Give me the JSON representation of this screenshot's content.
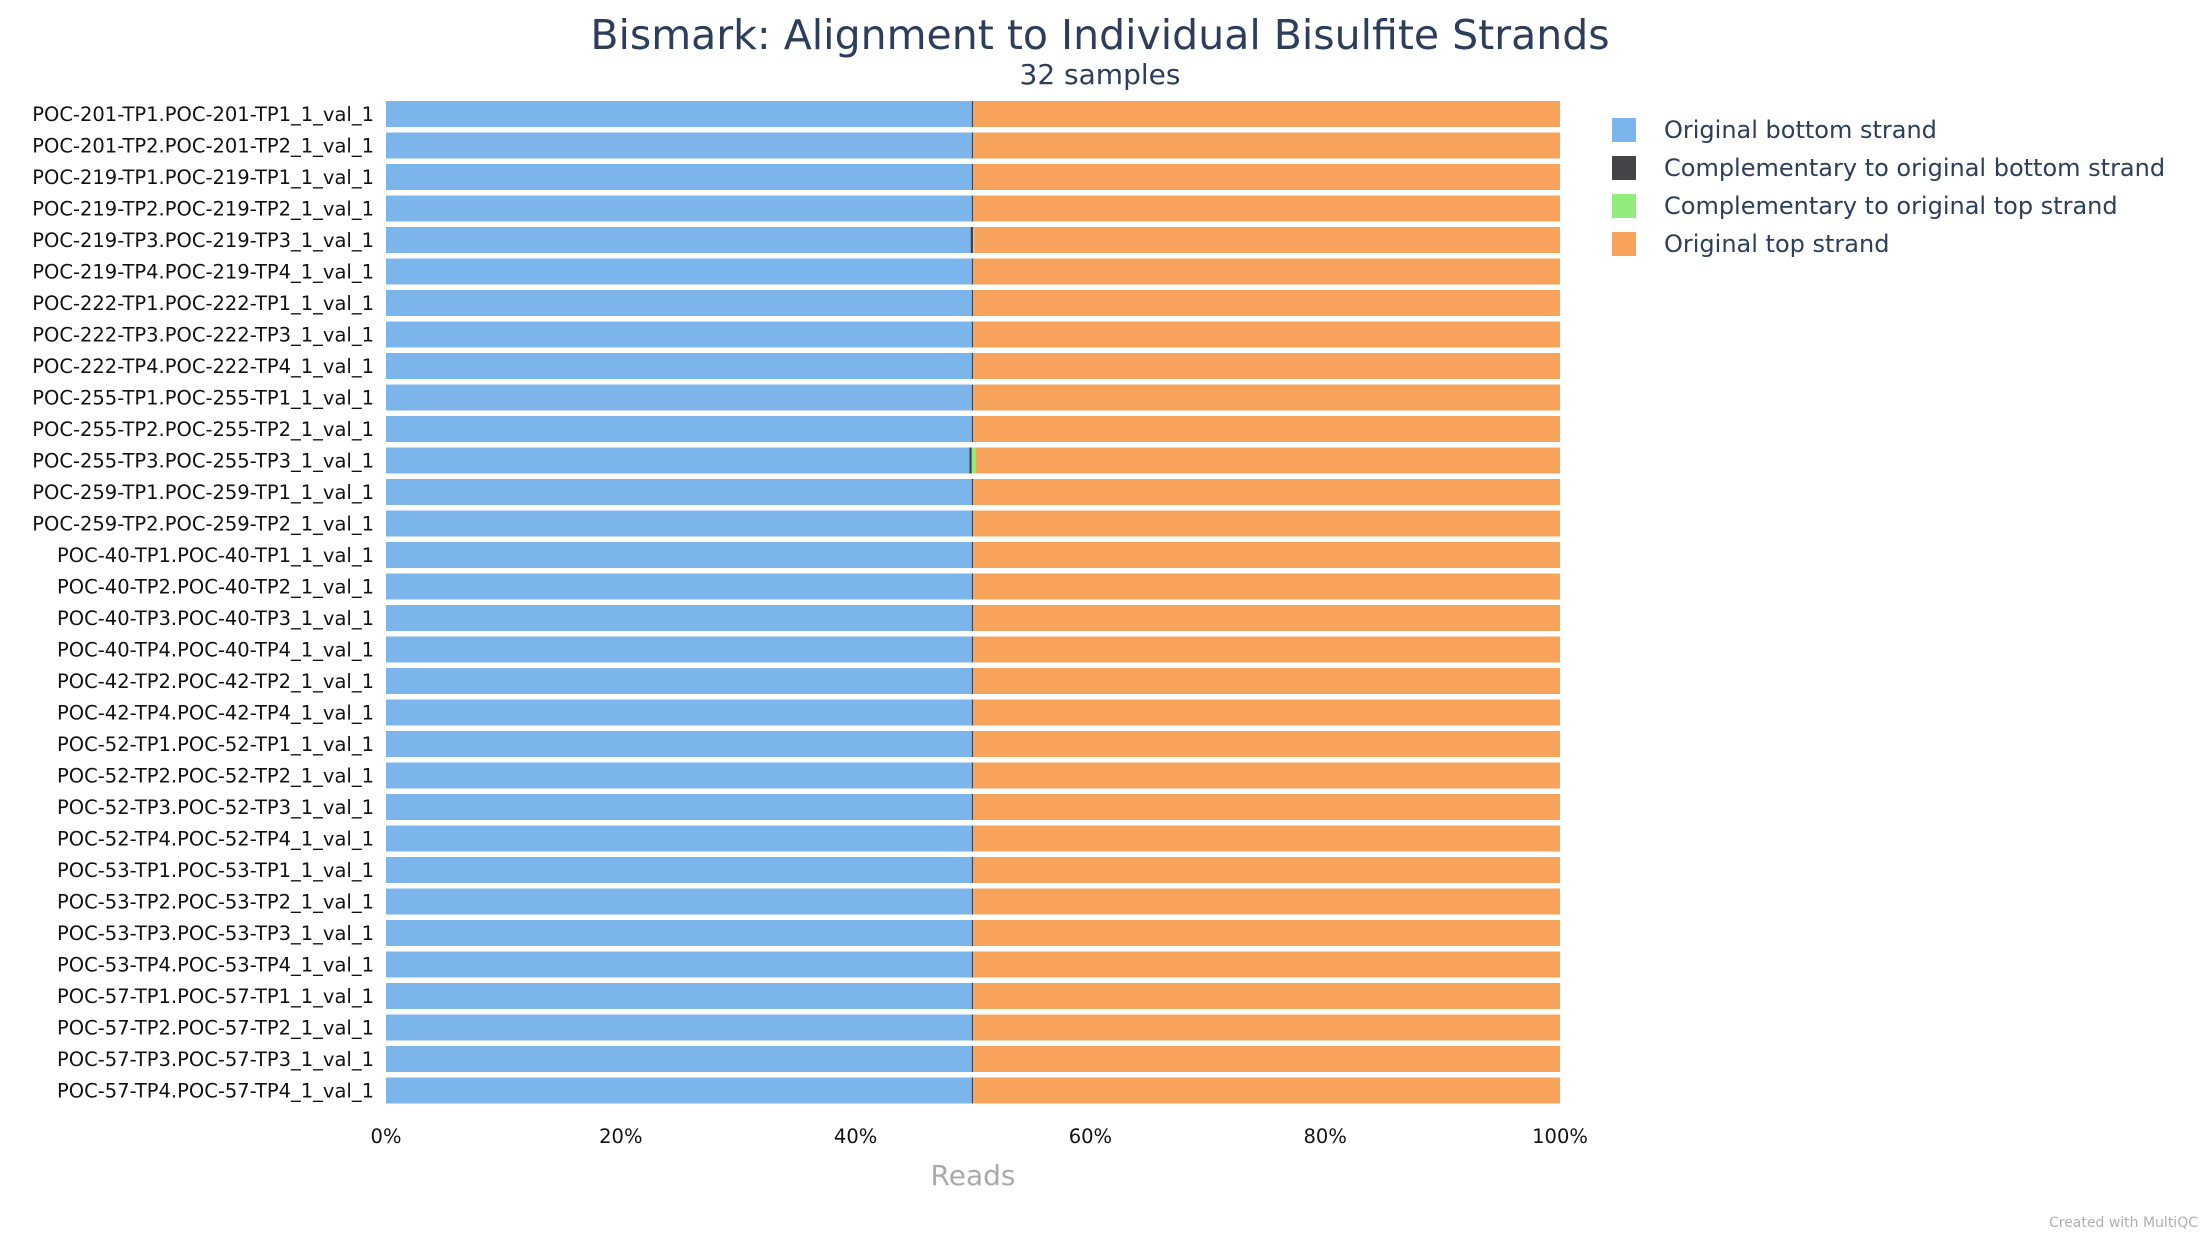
{
  "chart_data": {
    "type": "bar",
    "orientation": "horizontal",
    "stacked": true,
    "normalized": true,
    "title": "Bismark: Alignment to Individual Bisulfite Strands",
    "subtitle": "32 samples",
    "xlabel": "Reads",
    "xlim": [
      0,
      100
    ],
    "x_ticks": [
      "0%",
      "20%",
      "40%",
      "60%",
      "80%",
      "100%"
    ],
    "grid": false,
    "legend_position": "right",
    "categories": [
      "POC-201-TP1.POC-201-TP1_1_val_1",
      "POC-201-TP2.POC-201-TP2_1_val_1",
      "POC-219-TP1.POC-219-TP1_1_val_1",
      "POC-219-TP2.POC-219-TP2_1_val_1",
      "POC-219-TP3.POC-219-TP3_1_val_1",
      "POC-219-TP4.POC-219-TP4_1_val_1",
      "POC-222-TP1.POC-222-TP1_1_val_1",
      "POC-222-TP3.POC-222-TP3_1_val_1",
      "POC-222-TP4.POC-222-TP4_1_val_1",
      "POC-255-TP1.POC-255-TP1_1_val_1",
      "POC-255-TP2.POC-255-TP2_1_val_1",
      "POC-255-TP3.POC-255-TP3_1_val_1",
      "POC-259-TP1.POC-259-TP1_1_val_1",
      "POC-259-TP2.POC-259-TP2_1_val_1",
      "POC-40-TP1.POC-40-TP1_1_val_1",
      "POC-40-TP2.POC-40-TP2_1_val_1",
      "POC-40-TP3.POC-40-TP3_1_val_1",
      "POC-40-TP4.POC-40-TP4_1_val_1",
      "POC-42-TP2.POC-42-TP2_1_val_1",
      "POC-42-TP4.POC-42-TP4_1_val_1",
      "POC-52-TP1.POC-52-TP1_1_val_1",
      "POC-52-TP2.POC-52-TP2_1_val_1",
      "POC-52-TP3.POC-52-TP3_1_val_1",
      "POC-52-TP4.POC-52-TP4_1_val_1",
      "POC-53-TP1.POC-53-TP1_1_val_1",
      "POC-53-TP2.POC-53-TP2_1_val_1",
      "POC-53-TP3.POC-53-TP3_1_val_1",
      "POC-53-TP4.POC-53-TP4_1_val_1",
      "POC-57-TP1.POC-57-TP1_1_val_1",
      "POC-57-TP2.POC-57-TP2_1_val_1",
      "POC-57-TP3.POC-57-TP3_1_val_1",
      "POC-57-TP4.POC-57-TP4_1_val_1"
    ],
    "series": [
      {
        "name": "Original bottom strand",
        "color": "#7cb5ec",
        "values": [
          49.9,
          49.9,
          49.9,
          49.9,
          49.8,
          49.9,
          49.9,
          49.9,
          49.9,
          49.9,
          49.9,
          49.7,
          49.9,
          49.9,
          49.9,
          49.9,
          49.9,
          49.9,
          49.9,
          49.9,
          49.9,
          49.9,
          49.9,
          49.9,
          49.9,
          49.9,
          49.9,
          49.9,
          49.9,
          49.9,
          49.9,
          49.9
        ]
      },
      {
        "name": "Complementary to original bottom strand",
        "color": "#434348",
        "values": [
          0.1,
          0.1,
          0.1,
          0.1,
          0.2,
          0.1,
          0.1,
          0.1,
          0.1,
          0.1,
          0.1,
          0.2,
          0.1,
          0.1,
          0.1,
          0.1,
          0.1,
          0.1,
          0.1,
          0.1,
          0.1,
          0.1,
          0.1,
          0.1,
          0.1,
          0.1,
          0.1,
          0.1,
          0.1,
          0.1,
          0.1,
          0.1
        ]
      },
      {
        "name": "Complementary to original top strand",
        "color": "#90ed7d",
        "values": [
          0.0,
          0.0,
          0.0,
          0.0,
          0.1,
          0.0,
          0.0,
          0.0,
          0.0,
          0.0,
          0.0,
          0.3,
          0.0,
          0.0,
          0.0,
          0.0,
          0.0,
          0.0,
          0.0,
          0.0,
          0.0,
          0.0,
          0.0,
          0.0,
          0.0,
          0.0,
          0.0,
          0.0,
          0.0,
          0.0,
          0.0,
          0.0
        ]
      },
      {
        "name": "Original top strand",
        "color": "#f7a35c",
        "values": [
          50.0,
          50.0,
          50.0,
          50.0,
          49.9,
          50.0,
          50.0,
          50.0,
          50.0,
          50.0,
          50.0,
          49.8,
          50.0,
          50.0,
          50.0,
          50.0,
          50.0,
          50.0,
          50.0,
          50.0,
          50.0,
          50.0,
          50.0,
          50.0,
          50.0,
          50.0,
          50.0,
          50.0,
          50.0,
          50.0,
          50.0,
          50.0
        ]
      }
    ]
  },
  "footer": {
    "credit": "Created with MultiQC"
  }
}
